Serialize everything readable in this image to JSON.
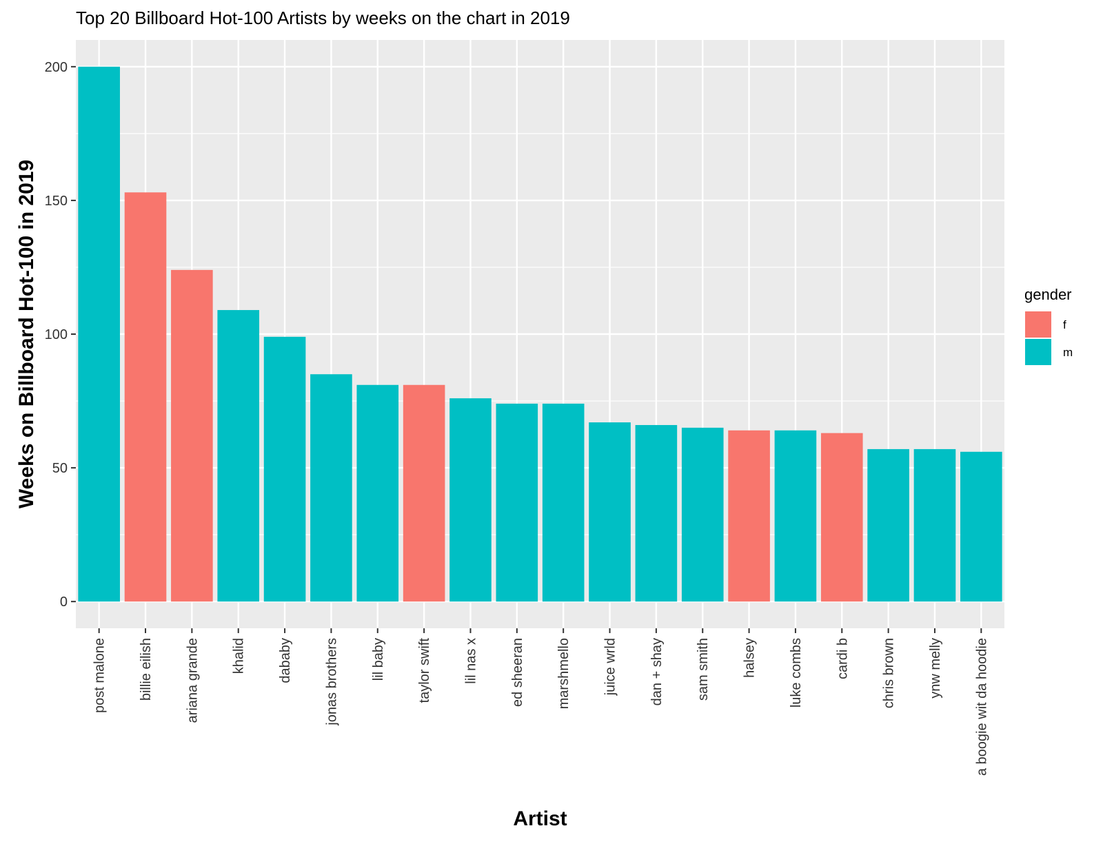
{
  "chart_data": {
    "type": "bar",
    "title": "Top 20 Billboard Hot-100 Artists by weeks on the chart in 2019",
    "xlabel": "Artist",
    "ylabel": "Weeks on Billboard Hot-100 in 2019",
    "ylim": [
      -10,
      210
    ],
    "yticks": [
      0,
      50,
      100,
      150,
      200
    ],
    "grid": true,
    "legend": {
      "title": "gender",
      "placement": "right",
      "entries": [
        {
          "key": "f",
          "label": "f",
          "color": "#F8766D"
        },
        {
          "key": "m",
          "label": "m",
          "color": "#00BFC4"
        }
      ]
    },
    "categories": [
      "post malone",
      "billie eilish",
      "ariana grande",
      "khalid",
      "dababy",
      "jonas brothers",
      "lil baby",
      "taylor swift",
      "lil nas x",
      "ed sheeran",
      "marshmello",
      "juice wrld",
      "dan + shay",
      "sam smith",
      "halsey",
      "luke combs",
      "cardi b",
      "chris brown",
      "ynw melly",
      "a boogie wit da hoodie"
    ],
    "values": [
      200,
      153,
      124,
      109,
      99,
      85,
      81,
      81,
      76,
      74,
      74,
      67,
      66,
      65,
      64,
      64,
      63,
      57,
      57,
      56
    ],
    "gender": [
      "m",
      "f",
      "f",
      "m",
      "m",
      "m",
      "m",
      "f",
      "m",
      "m",
      "m",
      "m",
      "m",
      "m",
      "f",
      "m",
      "f",
      "m",
      "m",
      "m"
    ]
  },
  "colors": {
    "panel_background": "#EBEBEB",
    "gridline": "#FFFFFF"
  }
}
